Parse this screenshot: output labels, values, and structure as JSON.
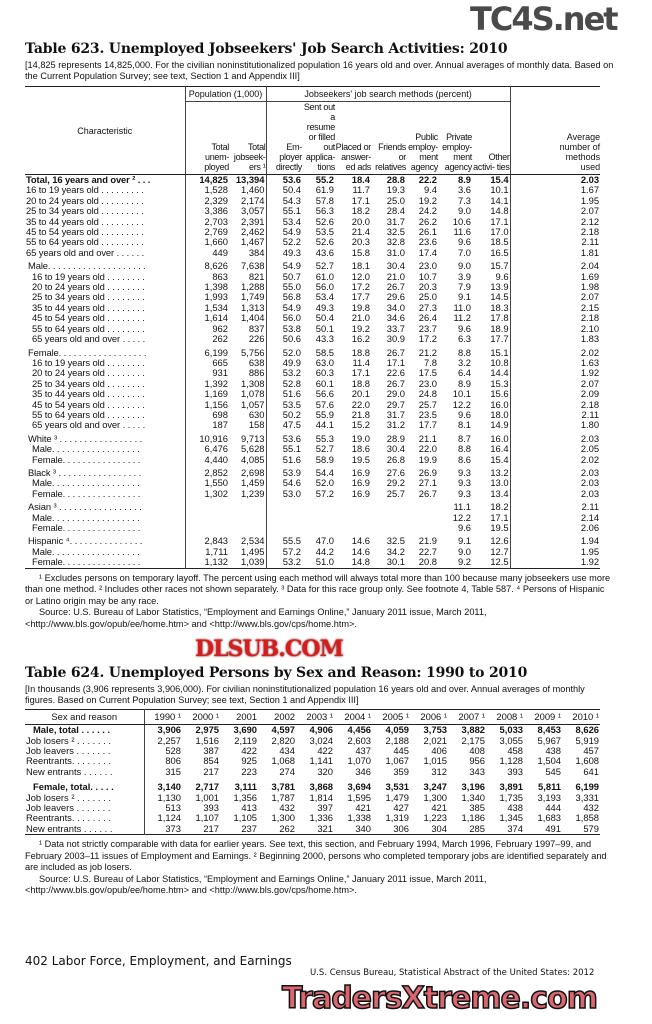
{
  "table623": {
    "title": "Table 623. Unemployed Jobseekers' Job Search Activities: 2010",
    "headnote": "[14,825 represents 14,825,000. For the civilian noninstitutionalized population 16 years old and over. Annual averages of monthly data. Based on the Current Population Survey; see text, Section 1 and Appendix III]",
    "group_population": "Population (1,000)",
    "group_methods": "Jobseekers' job search methods (percent)",
    "columns": [
      "Characteristic",
      "Total unem- ployed",
      "Total jobseek- ers ¹",
      "Em- ployer directly",
      "Sent out a resume or filled out applica- tions",
      "Placed or answer- ed ads",
      "Friends or relatives",
      "Public employ- ment agency",
      "Private employ- ment agency",
      "Other activi- ties",
      "Average number of methods used"
    ],
    "groups": [
      [
        [
          "Total, 16 years and over ² . . .",
          "14,825",
          "13,394",
          "53.6",
          "55.2",
          "18.4",
          "28.8",
          "22.2",
          "8.9",
          "15.4",
          "2.03"
        ],
        [
          "16 to 19 years old . . . . . . . . .",
          "1,528",
          "1,460",
          "50.4",
          "61.9",
          "11.7",
          "19.3",
          "9.4",
          "3.6",
          "10.1",
          "1.67"
        ],
        [
          "20 to 24 years old . . . . . . . . .",
          "2,329",
          "2,174",
          "54.3",
          "57.8",
          "17.1",
          "25.0",
          "19.2",
          "7.3",
          "14.1",
          "1.95"
        ],
        [
          "25 to 34 years old . . . . . . . . .",
          "3,386",
          "3,057",
          "55.1",
          "56.3",
          "18.2",
          "28.4",
          "24.2",
          "9.0",
          "14.8",
          "2.07"
        ],
        [
          "35 to 44 years old . . . . . . . . .",
          "2,703",
          "2,391",
          "53.4",
          "52.6",
          "20.0",
          "31.7",
          "26.2",
          "10.6",
          "17.1",
          "2.12"
        ],
        [
          "45 to 54 years old . . . . . . . . .",
          "2,769",
          "2,462",
          "54.9",
          "53.5",
          "21.4",
          "32.5",
          "26.1",
          "11.6",
          "17.0",
          "2.18"
        ],
        [
          "55 to 64 years old . . . . . . . . .",
          "1,660",
          "1,467",
          "52.2",
          "52.6",
          "20.3",
          "32.8",
          "23.6",
          "9.6",
          "18.5",
          "2.11"
        ],
        [
          "65 years old and over . . . . . .",
          "449",
          "384",
          "49.3",
          "43.6",
          "15.8",
          "31.0",
          "17.4",
          "7.0",
          "16.5",
          "1.81"
        ]
      ],
      [
        [
          "Male. . . . . . . . . . . . . . . . . . . .",
          "8,626",
          "7,638",
          "54.9",
          "52.7",
          "18.1",
          "30.4",
          "23.0",
          "9.0",
          "15.7",
          "2.04"
        ],
        [
          "  16 to 19 years old . . . . . . . .",
          "863",
          "821",
          "50.7",
          "61.0",
          "12.0",
          "21.0",
          "10.7",
          "3.9",
          "9.6",
          "1.69"
        ],
        [
          "  20 to 24 years old . . . . . . . .",
          "1,398",
          "1,288",
          "55.0",
          "56.0",
          "17.2",
          "26.7",
          "20.3",
          "7.9",
          "13.9",
          "1.98"
        ],
        [
          "  25 to 34 years old . . . . . . . .",
          "1,993",
          "1,749",
          "56.8",
          "53.4",
          "17.7",
          "29.6",
          "25.0",
          "9.1",
          "14.5",
          "2.07"
        ],
        [
          "  35 to 44 years old . . . . . . . .",
          "1,534",
          "1,313",
          "54.9",
          "49.3",
          "19.8",
          "34.0",
          "27.3",
          "11.0",
          "18.3",
          "2.15"
        ],
        [
          "  45 to 54 years old . . . . . . . .",
          "1,614",
          "1,404",
          "56.0",
          "50.4",
          "21.0",
          "34.6",
          "26.4",
          "11.2",
          "17.8",
          "2.18"
        ],
        [
          "  55 to 64 years old . . . . . . . .",
          "962",
          "837",
          "53.8",
          "50.1",
          "19.2",
          "33.7",
          "23.7",
          "9.6",
          "18.9",
          "2.10"
        ],
        [
          "  65 years old and over . . . . .",
          "262",
          "226",
          "50.6",
          "43.3",
          "16.2",
          "30.9",
          "17.2",
          "6.3",
          "17.7",
          "1.83"
        ]
      ],
      [
        [
          "Female. . . . . . . . . . . . . . . . . .",
          "6,199",
          "5,756",
          "52.0",
          "58.5",
          "18.8",
          "26.7",
          "21.2",
          "8.8",
          "15.1",
          "2.02"
        ],
        [
          "  16 to 19 years old . . . . . . . .",
          "665",
          "638",
          "49.9",
          "63.0",
          "11.4",
          "17.1",
          "7.8",
          "3.2",
          "10.8",
          "1.63"
        ],
        [
          "  20 to 24 years old . . . . . . . .",
          "931",
          "886",
          "53.2",
          "60.3",
          "17.1",
          "22.6",
          "17.5",
          "6.4",
          "14.4",
          "1.92"
        ],
        [
          "  25 to 34 years old . . . . . . . .",
          "1,392",
          "1,308",
          "52.8",
          "60.1",
          "18.8",
          "26.7",
          "23.0",
          "8.9",
          "15.3",
          "2.07"
        ],
        [
          "  35 to 44 years old . . . . . . . .",
          "1,169",
          "1,078",
          "51.6",
          "56.6",
          "20.1",
          "29.0",
          "24.8",
          "10.1",
          "15.6",
          "2.09"
        ],
        [
          "  45 to 54 years old . . . . . . . .",
          "1,156",
          "1,057",
          "53.5",
          "57.6",
          "22.0",
          "29.7",
          "25.7",
          "12.2",
          "16.0",
          "2.18"
        ],
        [
          "  55 to 64 years old . . . . . . . .",
          "698",
          "630",
          "50.2",
          "55.9",
          "21.8",
          "31.7",
          "23.5",
          "9.6",
          "18.0",
          "2.11"
        ],
        [
          "  65 years old and over . . . . .",
          "187",
          "158",
          "47.5",
          "44.1",
          "15.2",
          "31.2",
          "17.7",
          "8.1",
          "14.9",
          "1.80"
        ]
      ],
      [
        [
          "White ³ . . . . . . . . . . . . . . . . .",
          "10,916",
          "9,713",
          "53.6",
          "55.3",
          "19.0",
          "28.9",
          "21.1",
          "8.7",
          "16.0",
          "2.03"
        ],
        [
          "  Male. . . . . . . . . . . . . . . . . .",
          "6,476",
          "5,628",
          "55.1",
          "52.7",
          "18.6",
          "30.4",
          "22.0",
          "8.8",
          "16.4",
          "2.05"
        ],
        [
          "  Female. . . . . . . . . . . . . . . .",
          "4,440",
          "4,085",
          "51.6",
          "58.9",
          "19.5",
          "26.8",
          "19.9",
          "8.6",
          "15.4",
          "2.02"
        ]
      ],
      [
        [
          "Black ³ . . . . . . . . . . . . . . . . .",
          "2,852",
          "2,698",
          "53.9",
          "54.4",
          "16.9",
          "27.6",
          "26.9",
          "9.3",
          "13.2",
          "2.03"
        ],
        [
          "  Male. . . . . . . . . . . . . . . . . .",
          "1,550",
          "1,459",
          "54.6",
          "52.0",
          "16.9",
          "29.2",
          "27.1",
          "9.3",
          "13.0",
          "2.03"
        ],
        [
          "  Female. . . . . . . . . . . . . . . .",
          "1,302",
          "1,239",
          "53.0",
          "57.2",
          "16.9",
          "25.7",
          "26.7",
          "9.3",
          "13.4",
          "2.03"
        ]
      ],
      [
        [
          "Asian ³ . . . . . . . . . . . . . . . . .",
          "",
          "",
          "",
          "",
          "",
          "",
          "",
          "11.1",
          "18.2",
          "2.11"
        ],
        [
          "  Male. . . . . . . . . . . . . . . . . .",
          "",
          "",
          "",
          "",
          "",
          "",
          "",
          "12.2",
          "17.1",
          "2.14"
        ],
        [
          "  Female. . . . . . . . . . . . . . . .",
          "",
          "",
          "",
          "",
          "",
          "",
          "",
          "9.6",
          "19.5",
          "2.06"
        ]
      ],
      [
        [
          "Hispanic ⁴. . . . . . . . . . . . . . .",
          "2,843",
          "2,534",
          "55.5",
          "47.0",
          "14.6",
          "32.5",
          "21.9",
          "9.1",
          "12.6",
          "1.94"
        ],
        [
          "  Male. . . . . . . . . . . . . . . . . .",
          "1,711",
          "1,495",
          "57.2",
          "44.2",
          "14.6",
          "34.2",
          "22.7",
          "9.0",
          "12.7",
          "1.95"
        ],
        [
          "  Female. . . . . . . . . . . . . . . .",
          "1,132",
          "1,039",
          "53.2",
          "51.0",
          "14.8",
          "30.1",
          "20.8",
          "9.2",
          "12.5",
          "1.92"
        ]
      ]
    ],
    "footnote": "¹ Excludes persons on temporary layoff. The percent using each method will always total more than 100 because many jobseekers use more than one  method. ² Includes other races not shown separately. ³ Data for this race group only. See footnote 4, Table 587. ⁴ Persons of Hispanic or Latino origin may be any race.",
    "source": "Source: U.S. Bureau of Labor Statistics, “Employment and Earnings Online,” January 2011 issue, March 2011, <http://www.bls.gov/opub/ee/home.htm> and <http://www.bls.gov/cps/home.htm>."
  },
  "table624": {
    "title": "Table 624. Unemployed Persons by Sex and Reason: 1990 to 2010",
    "headnote": "[In thousands (3,906 represents 3,906,000). For civilian noninstitutionalized population 16 years old and over. Annual averages of monthly figures. Based on Current Population Survey; see text, Section 1 and Appendix III]",
    "columns": [
      "Sex and reason",
      "1990 ¹",
      "2000 ¹",
      "2001",
      "2002",
      "2003 ¹",
      "2004 ¹",
      "2005 ¹",
      "2006 ¹",
      "2007 ¹",
      "2008 ¹",
      "2009 ¹",
      "2010 ¹"
    ],
    "groups": [
      [
        [
          "Male, total  . . . . . .",
          "3,906",
          "2,975",
          "3,690",
          "4,597",
          "4,906",
          "4,456",
          "4,059",
          "3,753",
          "3,882",
          "5,033",
          "8,453",
          "8,626"
        ],
        [
          "Job losers ² . . . . . . .",
          "2,257",
          "1,516",
          "2,119",
          "2,820",
          "3,024",
          "2,603",
          "2,188",
          "2,021",
          "2,175",
          "3,055",
          "5,967",
          "5,919"
        ],
        [
          "Job leavers . . . . . . .",
          "528",
          "387",
          "422",
          "434",
          "422",
          "437",
          "445",
          "406",
          "408",
          "458",
          "438",
          "457"
        ],
        [
          "Reentrants. . . . . . . .",
          "806",
          "854",
          "925",
          "1,068",
          "1,141",
          "1,070",
          "1,067",
          "1,015",
          "956",
          "1,128",
          "1,504",
          "1,608"
        ],
        [
          "New entrants . . . . . .",
          "315",
          "217",
          "223",
          "274",
          "320",
          "346",
          "359",
          "312",
          "343",
          "393",
          "545",
          "641"
        ]
      ],
      [
        [
          "Female, total. . . . .",
          "3,140",
          "2,717",
          "3,111",
          "3,781",
          "3,868",
          "3,694",
          "3,531",
          "3,247",
          "3,196",
          "3,891",
          "5,811",
          "6,199"
        ],
        [
          "Job losers ² . . . . . . .",
          "1,130",
          "1,001",
          "1,356",
          "1,787",
          "1,814",
          "1,595",
          "1,479",
          "1,300",
          "1,340",
          "1,735",
          "3,193",
          "3,331"
        ],
        [
          "Job leavers . . . . . . .",
          "513",
          "393",
          "413",
          "432",
          "397",
          "421",
          "427",
          "421",
          "385",
          "438",
          "444",
          "432"
        ],
        [
          "Reentrants. . . . . . . .",
          "1,124",
          "1,107",
          "1,105",
          "1,300",
          "1,336",
          "1,338",
          "1,319",
          "1,223",
          "1,186",
          "1,345",
          "1,683",
          "1,858"
        ],
        [
          "New entrants . . . . . .",
          "373",
          "217",
          "237",
          "262",
          "321",
          "340",
          "306",
          "304",
          "285",
          "374",
          "491",
          "579"
        ]
      ]
    ],
    "footnote": "¹ Data not strictly comparable with data for earlier years. See text, this section, and February 1994, March 1996, February 1997–99, and February 2003–11 issues of Employment and Earnings. ² Beginning 2000, persons who completed temporary jobs are identified separately and are included as job losers.",
    "source": "Source: U.S. Bureau of Labor Statistics, “Employment and Earnings Online,” January 2011 issue, March 2011, <http://www.bls.gov/opub/ee/home.htm> and <http://www.bls.gov/cps/home.htm>."
  },
  "footer": {
    "page_section": "402  Labor Force, Employment, and Earnings",
    "publication": "U.S. Census Bureau, Statistical Abstract of the United States: 2012"
  },
  "watermarks": [
    "TC4S.net",
    "DLSUB.COM",
    "TradersXtreme.com"
  ]
}
